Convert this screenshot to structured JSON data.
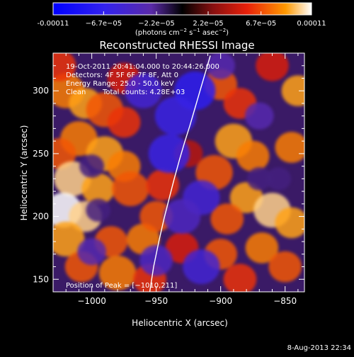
{
  "chart_data": {
    "type": "heatmap",
    "title": "Reconstructed RHESSI Image",
    "xlabel": "Heliocentric X (arcsec)",
    "ylabel": "Heliocentric Y (arcsec)",
    "xlim": [
      -1030,
      -835
    ],
    "ylim": [
      140,
      330
    ],
    "x_ticks": [
      -1000,
      -950,
      -900,
      -850
    ],
    "x_tick_labels": [
      "−1000",
      "−950",
      "−900",
      "−850"
    ],
    "y_ticks": [
      150,
      200,
      250,
      300
    ],
    "y_tick_labels": [
      "150",
      "200",
      "250",
      "300"
    ],
    "colorbar": {
      "min": -0.00011,
      "max": 0.00011,
      "tick_values": [
        -0.00011,
        -6.7e-05,
        -2.2e-05,
        2.2e-05,
        6.7e-05,
        0.00011
      ],
      "tick_labels": [
        "-0.00011",
        "−6.7e−05",
        "−2.2e−05",
        "2.2e−05",
        "6.7e−05",
        "0.00011"
      ],
      "unit_base": "(photons cm",
      "unit_exp1": "−2",
      "unit_mid": " s",
      "unit_exp2": "−1",
      "unit_mid2": " asec",
      "unit_exp3": "−2",
      "unit_end": ")"
    },
    "annotations": {
      "time_range": "19-Oct-2011 20:41:04.000 to 20:44:26.000",
      "detectors": "Detectors: 4F 5F 6F 7F 8F, Att 0",
      "energy_range": "Energy Range: 25.0 - 50.0 keV",
      "algorithm": "Clean",
      "total_counts": "Total counts: 4.28E+03",
      "peak_position": "Position of Peak = [−1010,211]"
    },
    "peak": {
      "x": -1010,
      "y": 211
    },
    "limb_curve": {
      "x": [
        -955,
        -952,
        -948,
        -944,
        -940,
        -936,
        -932,
        -928,
        -924,
        -920,
        -916,
        -912,
        -908
      ],
      "y": [
        140,
        160,
        180,
        198,
        214,
        230,
        245,
        259,
        272,
        286,
        300,
        314,
        328
      ]
    },
    "heat_blobs": [
      {
        "x": -1020,
        "y": 300,
        "v": 8e-05,
        "s": 9
      },
      {
        "x": -1005,
        "y": 290,
        "v": 9e-05,
        "s": 8
      },
      {
        "x": -990,
        "y": 285,
        "v": 7e-05,
        "s": 9
      },
      {
        "x": -975,
        "y": 275,
        "v": 6e-05,
        "s": 8
      },
      {
        "x": -1010,
        "y": 262,
        "v": 8e-05,
        "s": 9
      },
      {
        "x": -1025,
        "y": 250,
        "v": 7e-05,
        "s": 8
      },
      {
        "x": -990,
        "y": 250,
        "v": 9e-05,
        "s": 9
      },
      {
        "x": -975,
        "y": 240,
        "v": 8e-05,
        "s": 8
      },
      {
        "x": -1015,
        "y": 230,
        "v": 0.0001,
        "s": 9
      },
      {
        "x": -995,
        "y": 222,
        "v": 9e-05,
        "s": 8
      },
      {
        "x": -970,
        "y": 222,
        "v": 7e-05,
        "s": 9
      },
      {
        "x": -1022,
        "y": 205,
        "v": 0.00011,
        "s": 9
      },
      {
        "x": -1005,
        "y": 200,
        "v": 0.0001,
        "s": 8
      },
      {
        "x": -1020,
        "y": 182,
        "v": 9e-05,
        "s": 9
      },
      {
        "x": -985,
        "y": 180,
        "v": 7e-05,
        "s": 8
      },
      {
        "x": -960,
        "y": 182,
        "v": 8e-05,
        "s": 8
      },
      {
        "x": -950,
        "y": 200,
        "v": 7e-05,
        "s": 8
      },
      {
        "x": -945,
        "y": 225,
        "v": 6e-05,
        "s": 8
      },
      {
        "x": -1008,
        "y": 160,
        "v": 7e-05,
        "s": 8
      },
      {
        "x": -980,
        "y": 155,
        "v": 8e-05,
        "s": 9
      },
      {
        "x": -955,
        "y": 150,
        "v": 6e-05,
        "s": 8
      },
      {
        "x": -975,
        "y": 310,
        "v": 5e-05,
        "s": 8
      },
      {
        "x": -1025,
        "y": 320,
        "v": 6e-05,
        "s": 8
      },
      {
        "x": -900,
        "y": 305,
        "v": 7e-05,
        "s": 8
      },
      {
        "x": -885,
        "y": 290,
        "v": 6e-05,
        "s": 8
      },
      {
        "x": -890,
        "y": 260,
        "v": 9e-05,
        "s": 9
      },
      {
        "x": -875,
        "y": 248,
        "v": 8e-05,
        "s": 8
      },
      {
        "x": -905,
        "y": 235,
        "v": 7e-05,
        "s": 9
      },
      {
        "x": -880,
        "y": 215,
        "v": 9e-05,
        "s": 8
      },
      {
        "x": -895,
        "y": 198,
        "v": 7e-05,
        "s": 8
      },
      {
        "x": -860,
        "y": 205,
        "v": 0.0001,
        "s": 9
      },
      {
        "x": -845,
        "y": 195,
        "v": 9e-05,
        "s": 8
      },
      {
        "x": -868,
        "y": 175,
        "v": 8e-05,
        "s": 8
      },
      {
        "x": -900,
        "y": 170,
        "v": 7e-05,
        "s": 8
      },
      {
        "x": -885,
        "y": 150,
        "v": 6e-05,
        "s": 8
      },
      {
        "x": -850,
        "y": 160,
        "v": 7e-05,
        "s": 8
      },
      {
        "x": -845,
        "y": 255,
        "v": 8e-05,
        "s": 8
      },
      {
        "x": -840,
        "y": 300,
        "v": 9e-05,
        "s": 8
      },
      {
        "x": -860,
        "y": 320,
        "v": 5e-05,
        "s": 8
      },
      {
        "x": -930,
        "y": 175,
        "v": 5e-05,
        "s": 8
      },
      {
        "x": -925,
        "y": 250,
        "v": 4e-05,
        "s": 7
      },
      {
        "x": -920,
        "y": 300,
        "v": -7e-05,
        "s": 10
      },
      {
        "x": -935,
        "y": 280,
        "v": -6e-05,
        "s": 10
      },
      {
        "x": -940,
        "y": 250,
        "v": -6e-05,
        "s": 10
      },
      {
        "x": -960,
        "y": 300,
        "v": -5e-05,
        "s": 9
      },
      {
        "x": -915,
        "y": 215,
        "v": -5e-05,
        "s": 9
      },
      {
        "x": -930,
        "y": 200,
        "v": -4e-05,
        "s": 9
      },
      {
        "x": -915,
        "y": 160,
        "v": -5e-05,
        "s": 9
      },
      {
        "x": -950,
        "y": 165,
        "v": -4e-05,
        "s": 8
      },
      {
        "x": -1000,
        "y": 172,
        "v": -3e-05,
        "s": 7
      },
      {
        "x": -995,
        "y": 205,
        "v": -2e-05,
        "s": 6
      },
      {
        "x": -1000,
        "y": 240,
        "v": -2e-05,
        "s": 6
      },
      {
        "x": -870,
        "y": 230,
        "v": -2e-05,
        "s": 6
      },
      {
        "x": -870,
        "y": 280,
        "v": -3e-05,
        "s": 7
      },
      {
        "x": -855,
        "y": 230,
        "v": -2e-05,
        "s": 6
      },
      {
        "x": -900,
        "y": 320,
        "v": -3e-05,
        "s": 7
      }
    ]
  },
  "footer": {
    "timestamp": "8-Aug-2013 22:34"
  },
  "colors": {
    "background": "#000000",
    "axis": "#ffffff",
    "negative_low": "#0000ff",
    "negative_high": "#6a3cbf",
    "zero": "#000000",
    "positive_mid": "#e8200a",
    "positive_high": "#ff9900",
    "positive_top": "#ffffff"
  }
}
